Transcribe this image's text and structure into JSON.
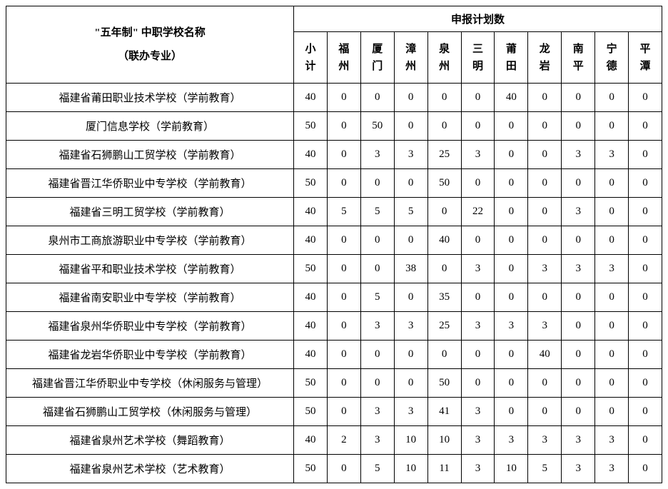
{
  "table": {
    "header": {
      "school_label_line1": "\"五年制\" 中职学校名称",
      "school_label_line2": "（联办专业）",
      "group_label": "申报计划数",
      "cols": [
        "小计",
        "福州",
        "厦门",
        "漳州",
        "泉州",
        "三明",
        "莆田",
        "龙岩",
        "南平",
        "宁德",
        "平潭"
      ]
    },
    "rows": [
      {
        "school": "福建省莆田职业技术学校（学前教育）",
        "vals": [
          40,
          0,
          0,
          0,
          0,
          0,
          40,
          0,
          0,
          0,
          0
        ]
      },
      {
        "school": "厦门信息学校（学前教育）",
        "vals": [
          50,
          0,
          50,
          0,
          0,
          0,
          0,
          0,
          0,
          0,
          0
        ]
      },
      {
        "school": "福建省石狮鹏山工贸学校（学前教育）",
        "vals": [
          40,
          0,
          3,
          3,
          25,
          3,
          0,
          0,
          3,
          3,
          0
        ]
      },
      {
        "school": "福建省晋江华侨职业中专学校（学前教育）",
        "vals": [
          50,
          0,
          0,
          0,
          50,
          0,
          0,
          0,
          0,
          0,
          0
        ]
      },
      {
        "school": "福建省三明工贸学校（学前教育）",
        "vals": [
          40,
          5,
          5,
          5,
          0,
          22,
          0,
          0,
          3,
          0,
          0
        ]
      },
      {
        "school": "泉州市工商旅游职业中专学校（学前教育）",
        "vals": [
          40,
          0,
          0,
          0,
          40,
          0,
          0,
          0,
          0,
          0,
          0
        ]
      },
      {
        "school": "福建省平和职业技术学校（学前教育）",
        "vals": [
          50,
          0,
          0,
          38,
          0,
          3,
          0,
          3,
          3,
          3,
          0
        ]
      },
      {
        "school": "福建省南安职业中专学校（学前教育）",
        "vals": [
          40,
          0,
          5,
          0,
          35,
          0,
          0,
          0,
          0,
          0,
          0
        ]
      },
      {
        "school": "福建省泉州华侨职业中专学校（学前教育）",
        "vals": [
          40,
          0,
          3,
          3,
          25,
          3,
          3,
          3,
          0,
          0,
          0
        ]
      },
      {
        "school": "福建省龙岩华侨职业中专学校（学前教育）",
        "vals": [
          40,
          0,
          0,
          0,
          0,
          0,
          0,
          40,
          0,
          0,
          0
        ]
      },
      {
        "school": "福建省晋江华侨职业中专学校（休闲服务与管理）",
        "vals": [
          50,
          0,
          0,
          0,
          50,
          0,
          0,
          0,
          0,
          0,
          0
        ]
      },
      {
        "school": "福建省石狮鹏山工贸学校（休闲服务与管理）",
        "vals": [
          50,
          0,
          3,
          3,
          41,
          3,
          0,
          0,
          0,
          0,
          0
        ]
      },
      {
        "school": "福建省泉州艺术学校（舞蹈教育）",
        "vals": [
          40,
          2,
          3,
          10,
          10,
          3,
          3,
          3,
          3,
          3,
          0
        ]
      },
      {
        "school": "福建省泉州艺术学校（艺术教育）",
        "vals": [
          50,
          0,
          5,
          10,
          11,
          3,
          10,
          5,
          3,
          3,
          0
        ]
      }
    ],
    "text_color": "#000000",
    "border_color": "#000000",
    "background_color": "#ffffff"
  }
}
